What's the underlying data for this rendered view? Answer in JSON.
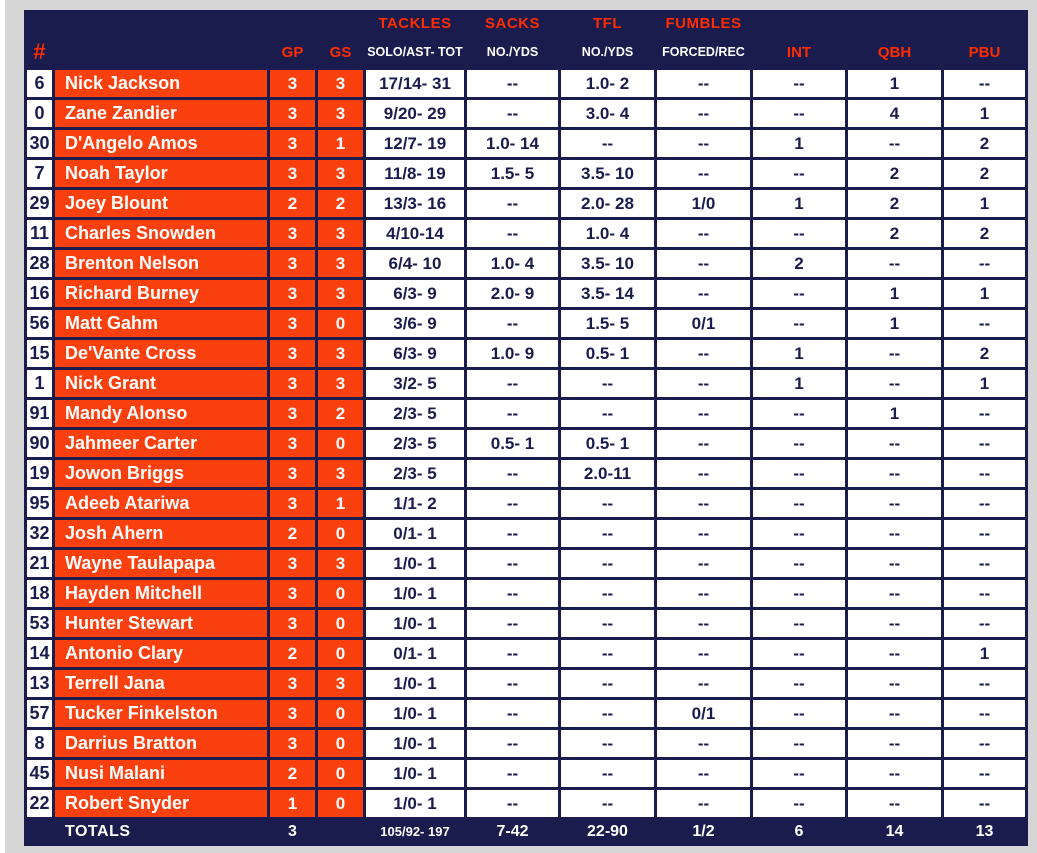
{
  "colors": {
    "navy": "#1a1c4e",
    "orange": "#fb400f",
    "accent_red": "#ff2c00",
    "page_bg": "#d6d6d6",
    "cell_white": "#ffffff"
  },
  "header": {
    "hash": "#",
    "name_col": "",
    "groups": {
      "tackles": "TACKLES",
      "sacks": "SACKS",
      "tfl": "TFL",
      "fumbles": "FUMBLES"
    },
    "cols": {
      "gp": "GP",
      "gs": "GS",
      "tackles_sub": "SOLO/AST- TOT",
      "sacks_sub": "NO./YDS",
      "tfl_sub": "NO./YDS",
      "fumbles_sub": "FORCED/REC",
      "int": "INT",
      "qbh": "QBH",
      "pbu": "PBU"
    }
  },
  "rows": [
    {
      "num": "6",
      "name": "Nick Jackson",
      "gp": "3",
      "gs": "3",
      "tackles": "17/14- 31",
      "sacks": "--",
      "tfl": "1.0- 2",
      "fum": "--",
      "int": "--",
      "qbh": "1",
      "pbu": "--"
    },
    {
      "num": "0",
      "name": "Zane Zandier",
      "gp": "3",
      "gs": "3",
      "tackles": "9/20- 29",
      "sacks": "--",
      "tfl": "3.0- 4",
      "fum": "--",
      "int": "--",
      "qbh": "4",
      "pbu": "1"
    },
    {
      "num": "30",
      "name": "D'Angelo Amos",
      "gp": "3",
      "gs": "1",
      "tackles": "12/7- 19",
      "sacks": "1.0- 14",
      "tfl": "--",
      "fum": "--",
      "int": "1",
      "qbh": "--",
      "pbu": "2"
    },
    {
      "num": "7",
      "name": "Noah Taylor",
      "gp": "3",
      "gs": "3",
      "tackles": "11/8- 19",
      "sacks": "1.5- 5",
      "tfl": "3.5- 10",
      "fum": "--",
      "int": "--",
      "qbh": "2",
      "pbu": "2"
    },
    {
      "num": "29",
      "name": "Joey Blount",
      "gp": "2",
      "gs": "2",
      "tackles": "13/3- 16",
      "sacks": "--",
      "tfl": "2.0- 28",
      "fum": "1/0",
      "int": "1",
      "qbh": "2",
      "pbu": "1"
    },
    {
      "num": "11",
      "name": "Charles Snowden",
      "gp": "3",
      "gs": "3",
      "tackles": "4/10-14",
      "sacks": "--",
      "tfl": "1.0- 4",
      "fum": "--",
      "int": "--",
      "qbh": "2",
      "pbu": "2"
    },
    {
      "num": "28",
      "name": "Brenton Nelson",
      "gp": "3",
      "gs": "3",
      "tackles": "6/4- 10",
      "sacks": "1.0- 4",
      "tfl": "3.5- 10",
      "fum": "--",
      "int": "2",
      "qbh": "--",
      "pbu": "--"
    },
    {
      "num": "16",
      "name": "Richard Burney",
      "gp": "3",
      "gs": "3",
      "tackles": "6/3- 9",
      "sacks": "2.0- 9",
      "tfl": "3.5- 14",
      "fum": "--",
      "int": "--",
      "qbh": "1",
      "pbu": "1"
    },
    {
      "num": "56",
      "name": "Matt Gahm",
      "gp": "3",
      "gs": "0",
      "tackles": "3/6- 9",
      "sacks": "--",
      "tfl": "1.5- 5",
      "fum": "0/1",
      "int": "--",
      "qbh": "1",
      "pbu": "--"
    },
    {
      "num": "15",
      "name": "De'Vante Cross",
      "gp": "3",
      "gs": "3",
      "tackles": "6/3- 9",
      "sacks": "1.0- 9",
      "tfl": "0.5- 1",
      "fum": "--",
      "int": "1",
      "qbh": "--",
      "pbu": "2"
    },
    {
      "num": "1",
      "name": "Nick Grant",
      "gp": "3",
      "gs": "3",
      "tackles": "3/2- 5",
      "sacks": "--",
      "tfl": "--",
      "fum": "--",
      "int": "1",
      "qbh": "--",
      "pbu": "1"
    },
    {
      "num": "91",
      "name": "Mandy Alonso",
      "gp": "3",
      "gs": "2",
      "tackles": "2/3- 5",
      "sacks": "--",
      "tfl": "--",
      "fum": "--",
      "int": "--",
      "qbh": "1",
      "pbu": "--"
    },
    {
      "num": "90",
      "name": "Jahmeer Carter",
      "gp": "3",
      "gs": "0",
      "tackles": "2/3- 5",
      "sacks": "0.5- 1",
      "tfl": "0.5- 1",
      "fum": "--",
      "int": "--",
      "qbh": "--",
      "pbu": "--"
    },
    {
      "num": "19",
      "name": "Jowon Briggs",
      "gp": "3",
      "gs": "3",
      "tackles": "2/3- 5",
      "sacks": "--",
      "tfl": "2.0-11",
      "fum": "--",
      "int": "--",
      "qbh": "--",
      "pbu": "--"
    },
    {
      "num": "95",
      "name": "Adeeb Atariwa",
      "gp": "3",
      "gs": "1",
      "tackles": "1/1- 2",
      "sacks": "--",
      "tfl": "--",
      "fum": "--",
      "int": "--",
      "qbh": "--",
      "pbu": "--"
    },
    {
      "num": "32",
      "name": "Josh Ahern",
      "gp": "2",
      "gs": "0",
      "tackles": "0/1- 1",
      "sacks": "--",
      "tfl": "--",
      "fum": "--",
      "int": "--",
      "qbh": "--",
      "pbu": "--"
    },
    {
      "num": "21",
      "name": "Wayne Taulapapa",
      "gp": "3",
      "gs": "3",
      "tackles": "1/0- 1",
      "sacks": "--",
      "tfl": "--",
      "fum": "--",
      "int": "--",
      "qbh": "--",
      "pbu": "--"
    },
    {
      "num": "18",
      "name": "Hayden Mitchell",
      "gp": "3",
      "gs": "0",
      "tackles": "1/0- 1",
      "sacks": "--",
      "tfl": "--",
      "fum": "--",
      "int": "--",
      "qbh": "--",
      "pbu": "--"
    },
    {
      "num": "53",
      "name": "Hunter Stewart",
      "gp": "3",
      "gs": "0",
      "tackles": "1/0- 1",
      "sacks": "--",
      "tfl": "--",
      "fum": "--",
      "int": "--",
      "qbh": "--",
      "pbu": "--"
    },
    {
      "num": "14",
      "name": "Antonio Clary",
      "gp": "2",
      "gs": "0",
      "tackles": "0/1- 1",
      "sacks": "--",
      "tfl": "--",
      "fum": "--",
      "int": "--",
      "qbh": "--",
      "pbu": "1"
    },
    {
      "num": "13",
      "name": "Terrell Jana",
      "gp": "3",
      "gs": "3",
      "tackles": "1/0- 1",
      "sacks": "--",
      "tfl": "--",
      "fum": "--",
      "int": "--",
      "qbh": "--",
      "pbu": "--"
    },
    {
      "num": "57",
      "name": "Tucker Finkelston",
      "gp": "3",
      "gs": "0",
      "tackles": "1/0- 1",
      "sacks": "--",
      "tfl": "--",
      "fum": "0/1",
      "int": "--",
      "qbh": "--",
      "pbu": "--"
    },
    {
      "num": "8",
      "name": "Darrius Bratton",
      "gp": "3",
      "gs": "0",
      "tackles": "1/0- 1",
      "sacks": "--",
      "tfl": "--",
      "fum": "--",
      "int": "--",
      "qbh": "--",
      "pbu": "--"
    },
    {
      "num": "45",
      "name": "Nusi Malani",
      "gp": "2",
      "gs": "0",
      "tackles": "1/0- 1",
      "sacks": "--",
      "tfl": "--",
      "fum": "--",
      "int": "--",
      "qbh": "--",
      "pbu": "--"
    },
    {
      "num": "22",
      "name": "Robert Snyder",
      "gp": "1",
      "gs": "0",
      "tackles": "1/0- 1",
      "sacks": "--",
      "tfl": "--",
      "fum": "--",
      "int": "--",
      "qbh": "--",
      "pbu": "--"
    }
  ],
  "totals": {
    "label": "TOTALS",
    "gp": "3",
    "gs": "",
    "tackles": "105/92- 197",
    "sacks": "7-42",
    "tfl": "22-90",
    "fum": "1/2",
    "int": "6",
    "qbh": "14",
    "pbu": "13"
  }
}
